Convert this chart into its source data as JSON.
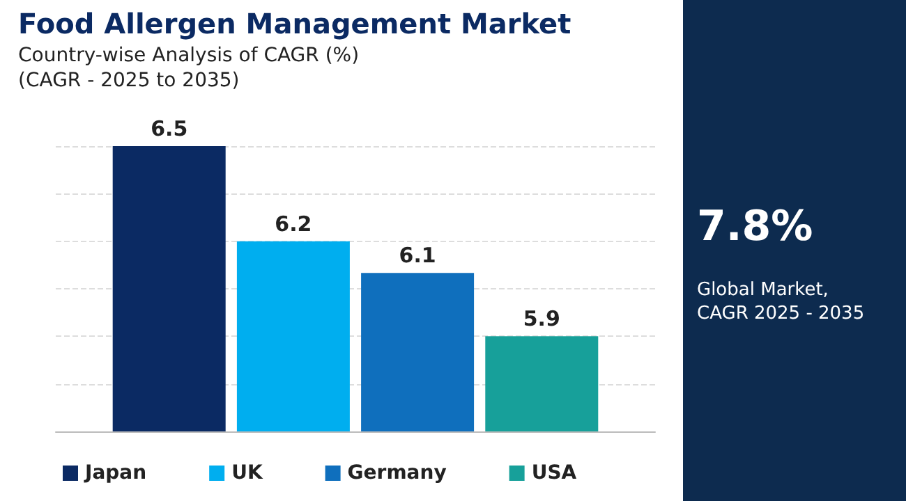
{
  "chart_data": {
    "type": "bar",
    "title": "Food Allergen Management Market",
    "subtitle": "Country-wise Analysis of CAGR (%)\n(CAGR - 2025 to 2035)",
    "categories": [
      null
    ],
    "series": [
      {
        "name": "Japan",
        "color": "#0b2a63",
        "values": [
          6.5
        ]
      },
      {
        "name": "UK",
        "color": "#00aeef",
        "values": [
          6.2
        ]
      },
      {
        "name": "Germany",
        "color": "#0f6fbd",
        "values": [
          6.1
        ]
      },
      {
        "name": "USA",
        "color": "#17a09a",
        "values": [
          5.9
        ]
      }
    ],
    "ylim": [
      5.6,
      6.5
    ],
    "yticks": [
      {
        "value": 5.6,
        "label": null
      },
      {
        "value": 5.75,
        "label": null
      },
      {
        "value": 5.9,
        "label": null
      },
      {
        "value": 6.05,
        "label": null
      },
      {
        "value": 6.2,
        "label": null
      },
      {
        "value": 6.35,
        "label": null
      },
      {
        "value": 6.5,
        "label": null
      }
    ],
    "grid": "y",
    "data_labels": true,
    "legend": "bottom",
    "annotations": [
      "7.8%",
      "Global Market,\nCAGR 2025 - 2035"
    ]
  }
}
